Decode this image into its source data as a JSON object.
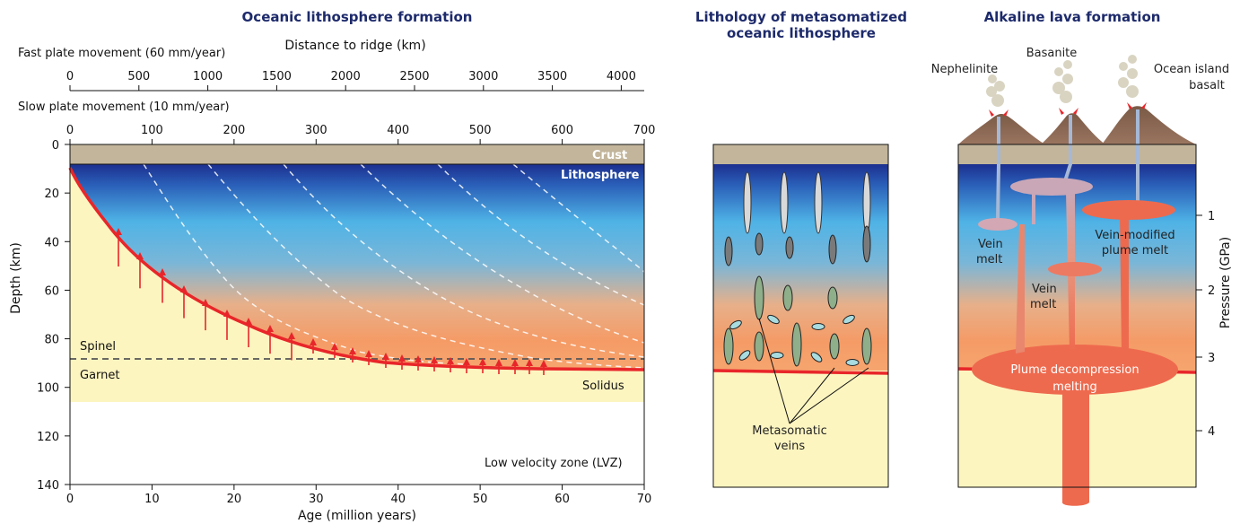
{
  "panel1": {
    "title": "Oceanic lithosphere formation",
    "fast_label": "Fast plate movement (60 mm/year)",
    "distance_label": "Distance to ridge (km)",
    "distance_ticks": [
      "0",
      "500",
      "1000",
      "1500",
      "2000",
      "2500",
      "3000",
      "3500",
      "4000"
    ],
    "slow_label": "Slow plate movement (10 mm/year)",
    "slow_ticks": [
      "0",
      "100",
      "200",
      "300",
      "400",
      "500",
      "600",
      "700"
    ],
    "age_ticks": [
      "0",
      "10",
      "20",
      "30",
      "40",
      "50",
      "60",
      "70"
    ],
    "age_label": "Age (million years)",
    "depth_ticks": [
      "0",
      "20",
      "40",
      "60",
      "80",
      "100",
      "120",
      "140"
    ],
    "depth_label": "Depth (km)",
    "crust": "Crust",
    "lithosphere": "Lithosphere",
    "spinel": "Spinel",
    "garnet": "Garnet",
    "solidus": "Solidus",
    "lvz": "Low velocity zone (LVZ)"
  },
  "panel2": {
    "title_line1": "Lithology of metasomatized",
    "title_line2": "oceanic lithosphere",
    "veins_line1": "Metasomatic",
    "veins_line2": "veins"
  },
  "panel3": {
    "title": "Alkaline lava formation",
    "nephelinite": "Nephelinite",
    "basanite": "Basanite",
    "oib_line1": "Ocean island",
    "oib_line2": "basalt",
    "vein_melt_line1": "Vein",
    "vein_melt_line2": "melt",
    "vein_melt2_line1": "Vein",
    "vein_melt2_line2": "melt",
    "vmpm_line1": "Vein-modified",
    "vmpm_line2": "plume melt",
    "plume_line1": "Plume decompression",
    "plume_line2": "melting",
    "pressure_label": "Pressure (GPa)",
    "pressure_ticks": [
      "1",
      "2",
      "3",
      "4"
    ]
  },
  "colors": {
    "crust": "#c2b59b",
    "deep_blue": "#1c2f8f",
    "sky_blue": "#4fb3e6",
    "orange": "#f3a06b",
    "mantle_yellow": "#fdf5c0",
    "solidus_red": "#e8262a",
    "title_navy": "#1d2a6b"
  }
}
